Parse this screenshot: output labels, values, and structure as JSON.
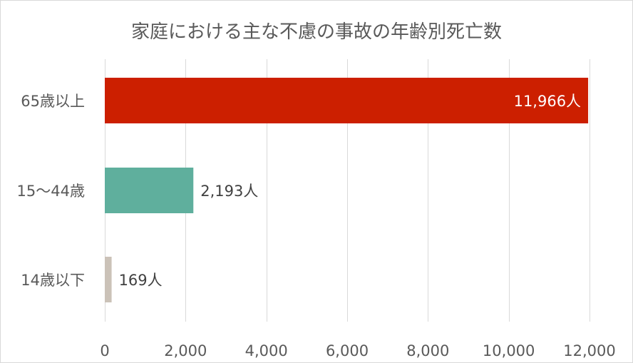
{
  "chart_data": {
    "type": "bar",
    "orientation": "horizontal",
    "title": "家庭における主な不慮の事故の年齢別死亡数",
    "categories": [
      "65歳以上",
      "15〜44歳",
      "14歳以下"
    ],
    "values": [
      11966,
      2193,
      169
    ],
    "data_labels": [
      "11,966人",
      "2,193人",
      "169人"
    ],
    "colors": [
      "#cc1f00",
      "#5faf9d",
      "#cbc2b8"
    ],
    "data_label_colors": [
      "#ffffff",
      "#404040",
      "#404040"
    ],
    "data_label_position": [
      "inside-end",
      "outside-end",
      "outside-end"
    ],
    "xlim": [
      0,
      12000
    ],
    "x_ticks": [
      0,
      2000,
      4000,
      6000,
      8000,
      10000,
      12000
    ],
    "x_tick_labels": [
      "0",
      "2,000",
      "4,000",
      "6,000",
      "8,000",
      "10,000",
      "12,000"
    ],
    "grid": true,
    "legend": false,
    "xlabel": "",
    "ylabel": ""
  }
}
